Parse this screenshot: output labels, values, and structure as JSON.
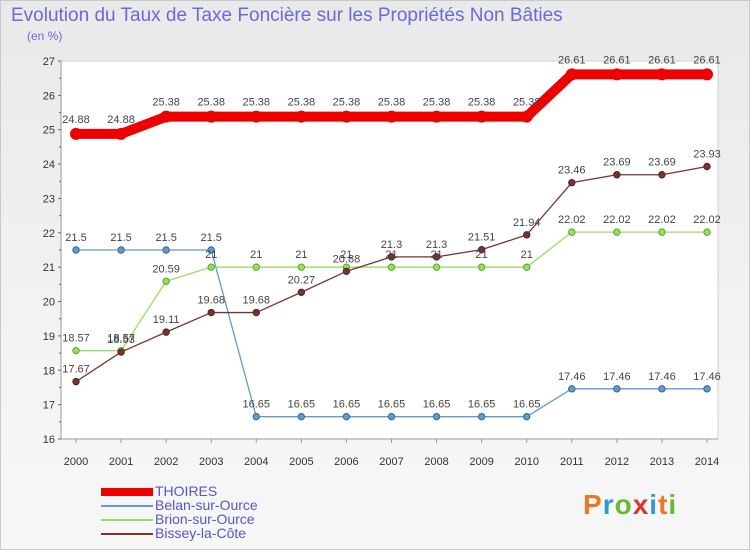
{
  "chart_data": {
    "type": "line",
    "title": "Evolution du Taux de Taxe Foncière sur les Propriétés Non Bâties",
    "subtitle": "(en %)",
    "xlabel": "",
    "ylabel": "",
    "ylim": [
      16,
      27
    ],
    "yticks": [
      "16",
      "17",
      "18",
      "19",
      "20",
      "21",
      "22",
      "23",
      "24",
      "25",
      "26",
      "27"
    ],
    "categories": [
      "2000",
      "2001",
      "2002",
      "2003",
      "2004",
      "2005",
      "2006",
      "2007",
      "2008",
      "2009",
      "2010",
      "2011",
      "2012",
      "2013",
      "2014"
    ],
    "grid": false,
    "legend_position": "bottom-left",
    "series": [
      {
        "name": "THOIRES",
        "color": "#ee0000",
        "values": [
          24.88,
          24.88,
          25.38,
          25.38,
          25.38,
          25.38,
          25.38,
          25.38,
          25.38,
          25.38,
          25.38,
          26.61,
          26.61,
          26.61,
          26.61
        ],
        "labels": [
          "24.88",
          "24.88",
          "25.38",
          "25.38",
          "25.38",
          "25.38",
          "25.38",
          "25.38",
          "25.38",
          "25.38",
          "25.38",
          "26.61",
          "26.61",
          "26.61",
          "26.61"
        ]
      },
      {
        "name": "Belan-sur-Ource",
        "color": "#6699cc",
        "values": [
          21.5,
          21.5,
          21.5,
          21.5,
          16.65,
          16.65,
          16.65,
          16.65,
          16.65,
          16.65,
          16.65,
          17.46,
          17.46,
          17.46,
          17.46
        ],
        "labels": [
          "21.5",
          "21.5",
          "21.5",
          "21.5",
          "16.65",
          "16.65",
          "16.65",
          "16.65",
          "16.65",
          "16.65",
          "16.65",
          "17.46",
          "17.46",
          "17.46",
          "17.46"
        ]
      },
      {
        "name": "Brion-sur-Ource",
        "color": "#99dd66",
        "values": [
          18.57,
          18.57,
          20.59,
          21,
          21,
          21,
          21,
          21,
          21,
          21,
          21,
          22.02,
          22.02,
          22.02,
          22.02
        ],
        "labels": [
          "18.57",
          "18.57",
          "20.59",
          "21",
          "21",
          "21",
          "21",
          "21",
          "21",
          "21",
          "21",
          "22.02",
          "22.02",
          "22.02",
          "22.02"
        ]
      },
      {
        "name": "Bissey-la-Côte",
        "color": "#773333",
        "values": [
          17.67,
          18.53,
          19.11,
          19.68,
          19.68,
          20.27,
          20.88,
          21.3,
          21.3,
          21.51,
          21.94,
          23.46,
          23.69,
          23.69,
          23.93
        ],
        "labels": [
          "17.67",
          "18.53",
          "19.11",
          "19.68",
          "19.68",
          "20.27",
          "20.88",
          "21.3",
          "21.3",
          "21.51",
          "21.94",
          "23.46",
          "23.69",
          "23.69",
          "23.93"
        ]
      }
    ]
  },
  "branding": {
    "logo_text": "Proxiti",
    "letter_colors": [
      "#ee7722",
      "#3399cc",
      "#66bb33",
      "#dd3333",
      "#3399cc",
      "#ee7722",
      "#66bb33"
    ]
  }
}
